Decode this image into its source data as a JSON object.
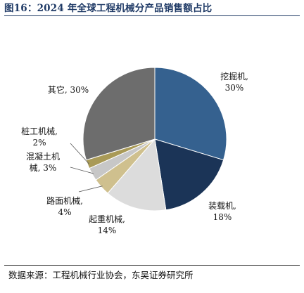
{
  "figure": {
    "title": "图16：2024 年全球工程机械分产品销售额占比",
    "source": "数据来源：工程机械行业协会，东吴证券研究所"
  },
  "chart_data": {
    "type": "pie",
    "title": "2024 年全球工程机械分产品销售额占比",
    "unit": "%",
    "slices": [
      {
        "label": "挖掘机",
        "value": 30,
        "text": "30%",
        "color": "#35618f"
      },
      {
        "label": "装载机",
        "value": 18,
        "text": "18%",
        "color": "#1b3457"
      },
      {
        "label": "起重机械",
        "value": 14,
        "text": "14%",
        "color": "#dcdcdc"
      },
      {
        "label": "路面机械",
        "value": 4,
        "text": "4%",
        "color": "#cfc08e"
      },
      {
        "label": "混凝土机械",
        "value": 3,
        "text": "3%",
        "color": "#c7c7c7"
      },
      {
        "label": "桩工机械",
        "value": 2,
        "text": "2%",
        "color": "#a99a57"
      },
      {
        "label": "其它",
        "value": 30,
        "text": "30%",
        "color": "#6d6d6d"
      }
    ],
    "labels": [
      {
        "lines": [
          "挖掘机,",
          "30%"
        ]
      },
      {
        "lines": [
          "装载机,",
          "18%"
        ]
      },
      {
        "lines": [
          "起重机械,",
          "14%"
        ]
      },
      {
        "lines": [
          "路面机械,",
          "4%"
        ]
      },
      {
        "lines": [
          "混凝土机",
          "械, 3%"
        ]
      },
      {
        "lines": [
          "桩工机械,",
          "2%"
        ]
      },
      {
        "lines": [
          "其它, 30%"
        ]
      }
    ]
  }
}
